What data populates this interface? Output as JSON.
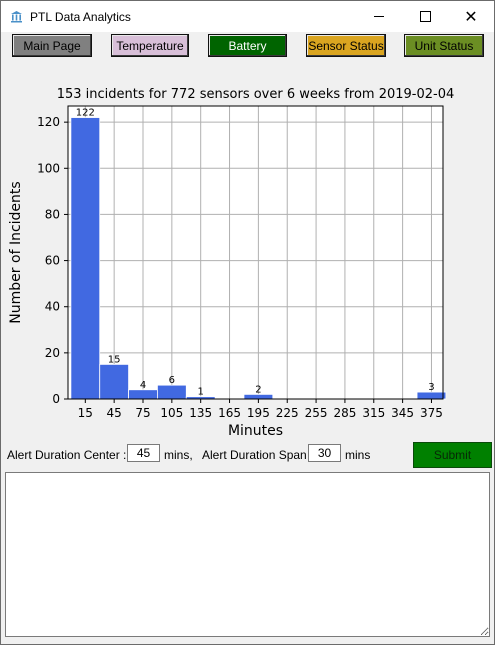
{
  "window": {
    "title": "PTL Data Analytics",
    "icon": "database-icon",
    "controls": {
      "minimize": "minimize",
      "maximize": "maximize",
      "close": "close"
    }
  },
  "nav": [
    {
      "label": "Main Page",
      "color": "#808080"
    },
    {
      "label": "Temperature",
      "color": "#d8bfd8"
    },
    {
      "label": "Battery",
      "color": "#006400",
      "text_color": "#ffffff"
    },
    {
      "label": "Sensor Status",
      "color": "#daa520"
    },
    {
      "label": "Unit Status",
      "color": "#6b8e23"
    }
  ],
  "chart_data": {
    "type": "bar",
    "title": "153 incidents for 772 sensors over 6 weeks from 2019-02-04",
    "xlabel": "Minutes",
    "ylabel": "Number of Incidents",
    "bar_color": "#4169e1",
    "categories": [
      15,
      45,
      75,
      105,
      135,
      165,
      195,
      225,
      255,
      285,
      315,
      345,
      375
    ],
    "values": [
      122,
      15,
      4,
      6,
      1,
      0,
      2,
      0,
      0,
      0,
      0,
      0,
      3
    ],
    "labels": [
      "122",
      "15",
      "4",
      "6",
      "1",
      "",
      "2",
      "",
      "",
      "",
      "",
      "",
      "3"
    ],
    "xticks": [
      "15",
      "45",
      "75",
      "105",
      "135",
      "165",
      "195",
      "225",
      "255",
      "285",
      "315",
      "345",
      "375"
    ],
    "yticks": [
      0,
      20,
      40,
      60,
      80,
      100,
      120
    ],
    "ylim": [
      0,
      127
    ],
    "xlim": [
      -3,
      387
    ],
    "grid": true
  },
  "controls": {
    "center_label": "Alert Duration Center :",
    "center_value": "45",
    "center_unit": "mins,",
    "span_label": "Alert Duration Span",
    "span_value": "30",
    "span_unit": "mins",
    "submit_label": "Submit"
  },
  "output": {
    "text": ""
  }
}
